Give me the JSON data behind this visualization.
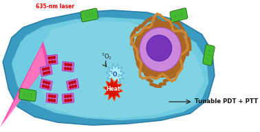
{
  "bg_color": "#ffffff",
  "cell_outer_color": "#3a9abf",
  "cell_inner_color": "#6ecbe0",
  "cell_highlight_color": "#9adce8",
  "cell_edge_color": "#2a7fa8",
  "laser_color": "#ff44aa",
  "laser_core_color": "#ff99cc",
  "laser_label": "635-nm laser",
  "laser_label_color": "#ee0000",
  "nano_base_color": "#cc66cc",
  "nano_edge_color": "#aa33aa",
  "nano_dot_color": "#cc0000",
  "nucleus_outer_color": "#aa6622",
  "nucleus_mid_color": "#cc8833",
  "nucleus_inner_color": "#cc88dd",
  "nucleus_core_color": "#7733bb",
  "nucleus_core2_color": "#5522aa",
  "bacteria_color": "#44bb33",
  "bacteria_edge_color": "#226611",
  "bacteria_stripe_color": "#339922",
  "o2_starburst_color": "#aaeeff",
  "o2_starburst_edge": "#55aacc",
  "o2_text_color": "#2255aa",
  "heat_color": "#dd1100",
  "heat_edge_color": "#ff4400",
  "heat_text_color": "#ffffff",
  "arrow_color": "#222222",
  "label_text": "Tunable PDT + PTT",
  "label_color": "#111111"
}
